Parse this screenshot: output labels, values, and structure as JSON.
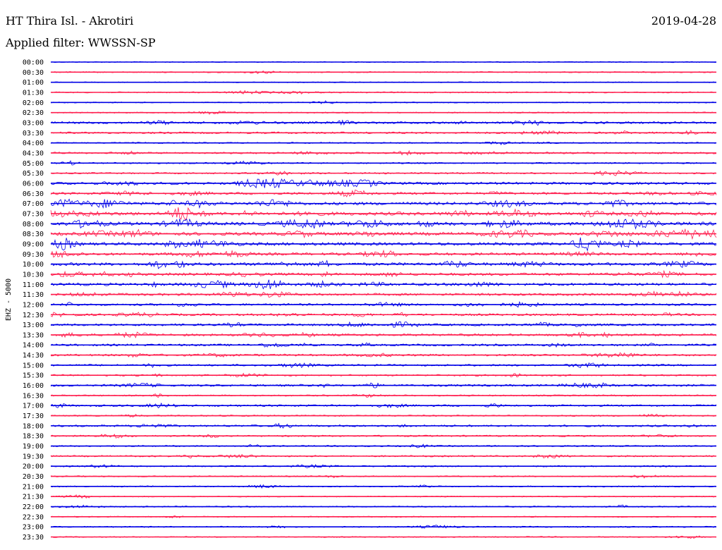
{
  "header": {
    "station": "HT Thira Isl. - Akrotiri",
    "filter": "Applied filter: WWSSN-SP",
    "date": "2019-04-28"
  },
  "chart_data": {
    "type": "line",
    "title": "HT Thira Isl. - Akrotiri",
    "ylabel": "EHZ - 5000",
    "rows": [
      "00:00",
      "00:30",
      "01:00",
      "01:30",
      "02:00",
      "02:30",
      "03:00",
      "03:30",
      "04:00",
      "04:30",
      "05:00",
      "05:30",
      "06:00",
      "06:30",
      "07:00",
      "07:30",
      "08:00",
      "08:30",
      "09:00",
      "09:30",
      "10:00",
      "10:30",
      "11:00",
      "11:30",
      "12:00",
      "12:30",
      "13:00",
      "13:30",
      "14:00",
      "14:30",
      "15:00",
      "15:30",
      "16:00",
      "16:30",
      "17:00",
      "17:30",
      "18:00",
      "18:30",
      "19:00",
      "19:30",
      "20:00",
      "20:30",
      "21:00",
      "21:30",
      "22:00",
      "22:30",
      "23:00",
      "23:30"
    ],
    "colors": {
      "even": "#0000e6",
      "odd": "#ff1f4f"
    },
    "activity": [
      0.05,
      0.12,
      0.05,
      0.15,
      0.08,
      0.12,
      0.45,
      0.35,
      0.15,
      0.3,
      0.2,
      0.25,
      0.55,
      0.5,
      0.7,
      0.85,
      0.85,
      0.8,
      0.75,
      0.6,
      0.7,
      0.6,
      0.6,
      0.5,
      0.4,
      0.45,
      0.45,
      0.45,
      0.4,
      0.4,
      0.35,
      0.25,
      0.4,
      0.2,
      0.35,
      0.2,
      0.35,
      0.25,
      0.2,
      0.25,
      0.2,
      0.15,
      0.15,
      0.1,
      0.15,
      0.1,
      0.15,
      0.1
    ]
  }
}
